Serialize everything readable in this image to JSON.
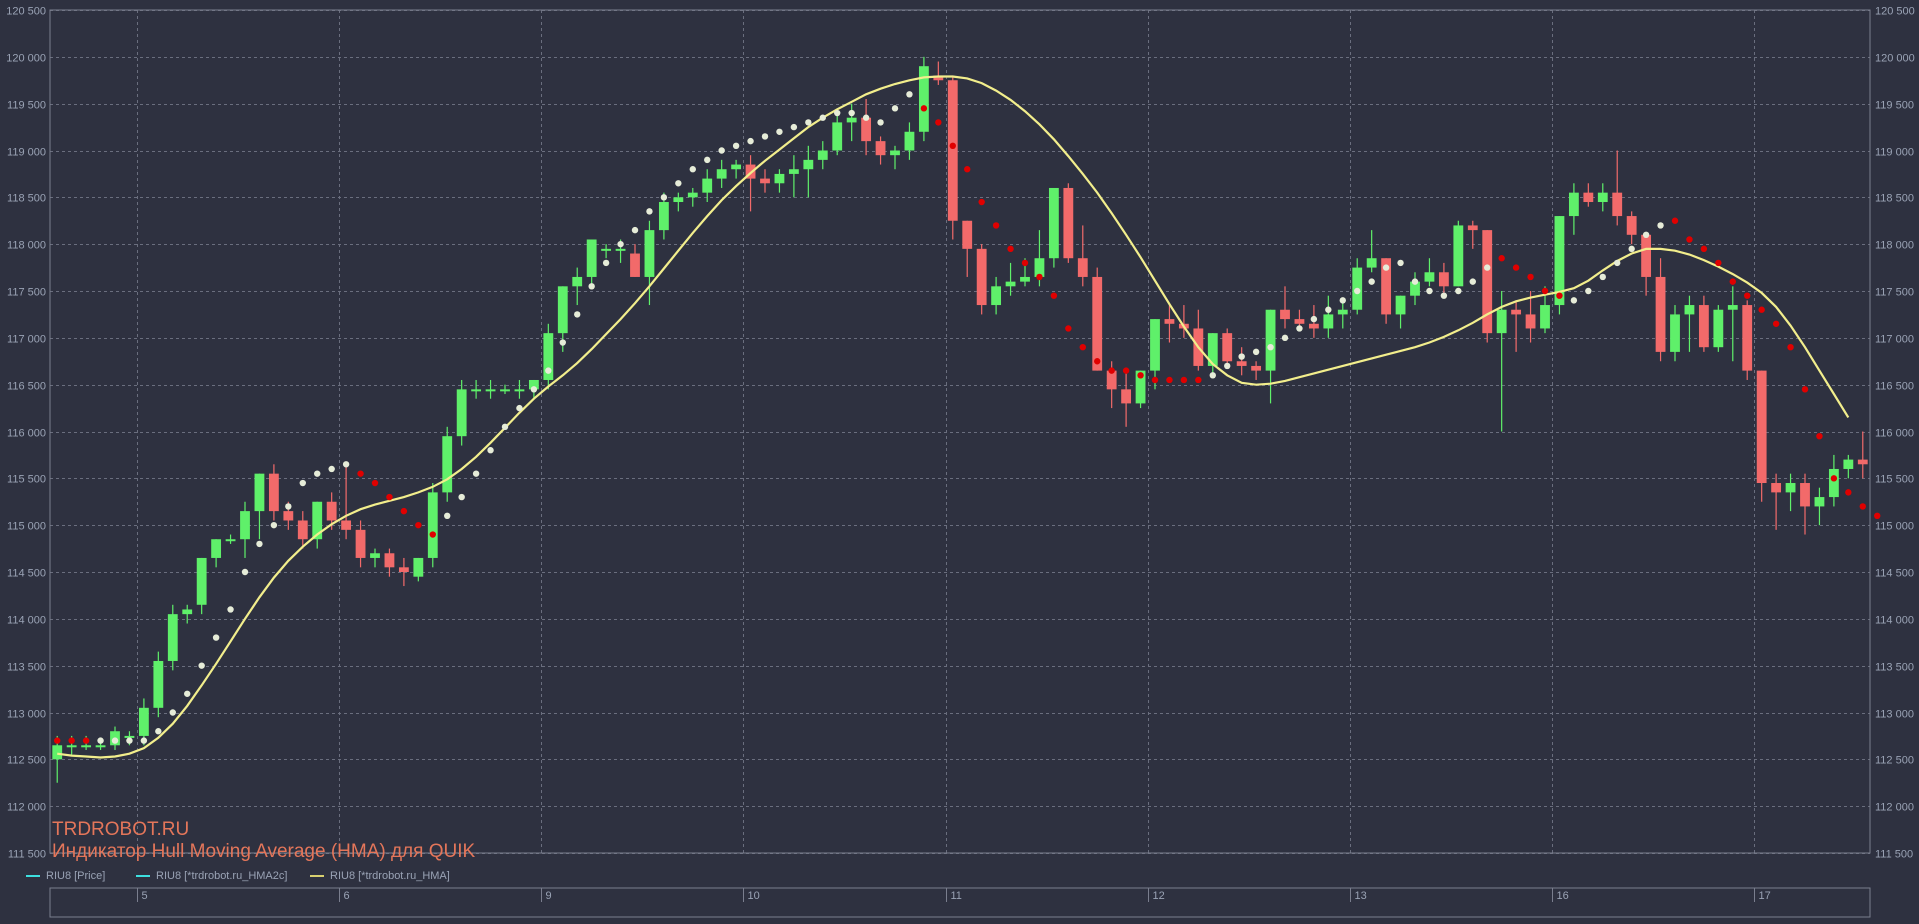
{
  "watermark": {
    "site": "TRDROBOT.RU",
    "title": "Индикатор Hull Moving Average (HMA) для QUIK"
  },
  "legend": [
    {
      "label": "RIU8 [Price]",
      "color": "#3de0e0"
    },
    {
      "label": "RIU8 [*trdrobot.ru_HMA2c]",
      "color": "#3de0e0"
    },
    {
      "label": "RIU8 [*trdrobot.ru_HMA]",
      "color": "#d8d070"
    }
  ],
  "colors": {
    "background": "#2e3140",
    "grid": "#6a6e7e",
    "bull": "#5ff06a",
    "bear": "#f26a6a",
    "hma_line": "#f2ee8c",
    "dot_up": "#e6ecd8",
    "dot_down": "#e00000",
    "axis_text": "#9aa3b5"
  },
  "chart_data": {
    "type": "candlestick",
    "y_range": [
      111500,
      120500
    ],
    "y_ticks": [
      111500,
      112000,
      112500,
      113000,
      113500,
      114000,
      114500,
      115000,
      115500,
      116000,
      116500,
      117000,
      117500,
      118000,
      118500,
      119000,
      119500,
      120000,
      120500
    ],
    "y_tick_labels": [
      "111 500",
      "112 000",
      "112 500",
      "113 000",
      "113 500",
      "114 000",
      "114 500",
      "115 000",
      "115 500",
      "116 000",
      "116 500",
      "117 000",
      "117 500",
      "118 000",
      "118 500",
      "119 000",
      "119 500",
      "120 000",
      "120 500"
    ],
    "x_day_labels": [
      {
        "label": "5",
        "bar": 6
      },
      {
        "label": "6",
        "bar": 20
      },
      {
        "label": "9",
        "bar": 34
      },
      {
        "label": "10",
        "bar": 48
      },
      {
        "label": "11",
        "bar": 62
      },
      {
        "label": "12",
        "bar": 76
      },
      {
        "label": "13",
        "bar": 90
      },
      {
        "label": "16",
        "bar": 104
      },
      {
        "label": "17",
        "bar": 118
      }
    ],
    "bars": [
      [
        112500,
        112750,
        112250,
        112650
      ],
      [
        112650,
        112750,
        112550,
        112650
      ],
      [
        112650,
        112750,
        112600,
        112650
      ],
      [
        112650,
        112700,
        112600,
        112650
      ],
      [
        112650,
        112850,
        112600,
        112800
      ],
      [
        112750,
        112800,
        112650,
        112750
      ],
      [
        112750,
        113150,
        112650,
        113050
      ],
      [
        113050,
        113650,
        112950,
        113550
      ],
      [
        113550,
        114150,
        113450,
        114050
      ],
      [
        114050,
        114150,
        113950,
        114100
      ],
      [
        114150,
        114650,
        114050,
        114650
      ],
      [
        114650,
        114850,
        114550,
        114850
      ],
      [
        114850,
        114900,
        114800,
        114850
      ],
      [
        114850,
        115250,
        114650,
        115150
      ],
      [
        115150,
        115550,
        114850,
        115550
      ],
      [
        115550,
        115650,
        115050,
        115150
      ],
      [
        115150,
        115250,
        114950,
        115050
      ],
      [
        115050,
        115150,
        114750,
        114850
      ],
      [
        114850,
        115250,
        114750,
        115250
      ],
      [
        115250,
        115350,
        114950,
        115050
      ],
      [
        115050,
        115650,
        114850,
        114950
      ],
      [
        114950,
        115050,
        114550,
        114650
      ],
      [
        114650,
        114750,
        114550,
        114700
      ],
      [
        114700,
        114750,
        114450,
        114550
      ],
      [
        114550,
        114650,
        114350,
        114500
      ],
      [
        114450,
        114650,
        114400,
        114650
      ],
      [
        114650,
        115450,
        114550,
        115350
      ],
      [
        115350,
        116050,
        115250,
        115950
      ],
      [
        115950,
        116550,
        115850,
        116450
      ],
      [
        116450,
        116550,
        116350,
        116450
      ],
      [
        116450,
        116550,
        116350,
        116450
      ],
      [
        116450,
        116500,
        116400,
        116450
      ],
      [
        116450,
        116550,
        116350,
        116450
      ],
      [
        116450,
        116550,
        116350,
        116550
      ],
      [
        116550,
        117150,
        116450,
        117050
      ],
      [
        117050,
        117550,
        116850,
        117550
      ],
      [
        117550,
        117750,
        117350,
        117650
      ],
      [
        117650,
        118050,
        117550,
        118050
      ],
      [
        117950,
        118000,
        117850,
        117950
      ],
      [
        117950,
        118050,
        117800,
        117950
      ],
      [
        117900,
        118000,
        117650,
        117650
      ],
      [
        117650,
        118250,
        117350,
        118150
      ],
      [
        118150,
        118550,
        118050,
        118450
      ],
      [
        118450,
        118550,
        118350,
        118500
      ],
      [
        118500,
        118600,
        118400,
        118550
      ],
      [
        118550,
        118800,
        118450,
        118700
      ],
      [
        118700,
        118900,
        118600,
        118800
      ],
      [
        118800,
        118900,
        118700,
        118850
      ],
      [
        118850,
        118950,
        118350,
        118700
      ],
      [
        118700,
        118800,
        118550,
        118650
      ],
      [
        118650,
        118800,
        118550,
        118750
      ],
      [
        118750,
        118950,
        118500,
        118800
      ],
      [
        118800,
        119050,
        118500,
        118900
      ],
      [
        118900,
        119100,
        118800,
        119000
      ],
      [
        119000,
        119400,
        118950,
        119300
      ],
      [
        119300,
        119500,
        119100,
        119350
      ],
      [
        119350,
        119550,
        118950,
        119100
      ],
      [
        119100,
        119150,
        118850,
        118950
      ],
      [
        118950,
        119050,
        118800,
        119000
      ],
      [
        119000,
        119300,
        118900,
        119200
      ],
      [
        119200,
        120000,
        119100,
        119900
      ],
      [
        119800,
        119950,
        119700,
        119750
      ],
      [
        119750,
        119800,
        118050,
        118250
      ],
      [
        118250,
        118250,
        117650,
        117950
      ],
      [
        117950,
        118000,
        117250,
        117350
      ],
      [
        117350,
        117650,
        117250,
        117550
      ],
      [
        117550,
        117800,
        117450,
        117600
      ],
      [
        117600,
        117850,
        117550,
        117650
      ],
      [
        117650,
        118150,
        117550,
        117850
      ],
      [
        117850,
        118550,
        117750,
        118600
      ],
      [
        118600,
        118650,
        117800,
        117850
      ],
      [
        117850,
        118200,
        117550,
        117650
      ],
      [
        117650,
        117750,
        116650,
        116650
      ],
      [
        116650,
        116750,
        116250,
        116450
      ],
      [
        116450,
        116650,
        116050,
        116300
      ],
      [
        116300,
        116650,
        116250,
        116650
      ],
      [
        116650,
        117200,
        116450,
        117200
      ],
      [
        117200,
        117350,
        116950,
        117150
      ],
      [
        117150,
        117350,
        117000,
        117100
      ],
      [
        117100,
        117300,
        116650,
        116700
      ],
      [
        116700,
        117050,
        116600,
        117050
      ],
      [
        117050,
        117100,
        116700,
        116750
      ],
      [
        116750,
        116900,
        116600,
        116700
      ],
      [
        116700,
        116750,
        116550,
        116650
      ],
      [
        116650,
        117300,
        116300,
        117300
      ],
      [
        117300,
        117550,
        117100,
        117200
      ],
      [
        117200,
        117300,
        117100,
        117150
      ],
      [
        117150,
        117350,
        117000,
        117100
      ],
      [
        117100,
        117450,
        117000,
        117250
      ],
      [
        117250,
        117400,
        117100,
        117300
      ],
      [
        117300,
        117850,
        117250,
        117750
      ],
      [
        117750,
        118150,
        117700,
        117850
      ],
      [
        117850,
        117850,
        117150,
        117250
      ],
      [
        117250,
        117450,
        117100,
        117450
      ],
      [
        117450,
        117700,
        117350,
        117600
      ],
      [
        117600,
        117850,
        117550,
        117700
      ],
      [
        117700,
        117800,
        117450,
        117550
      ],
      [
        117550,
        118250,
        117550,
        118200
      ],
      [
        118200,
        118250,
        117950,
        118150
      ],
      [
        118150,
        118150,
        116950,
        117050
      ],
      [
        117050,
        117500,
        116000,
        117300
      ],
      [
        117300,
        117400,
        116850,
        117250
      ],
      [
        117250,
        117500,
        116950,
        117100
      ],
      [
        117100,
        117550,
        117050,
        117350
      ],
      [
        117350,
        118300,
        117250,
        118300
      ],
      [
        118300,
        118650,
        118100,
        118550
      ],
      [
        118550,
        118650,
        118400,
        118450
      ],
      [
        118450,
        118650,
        118350,
        118550
      ],
      [
        118550,
        119000,
        118200,
        118300
      ],
      [
        118300,
        118350,
        118000,
        118100
      ],
      [
        118100,
        118050,
        117450,
        117650
      ],
      [
        117650,
        117850,
        116750,
        116850
      ],
      [
        116850,
        117350,
        116750,
        117250
      ],
      [
        117250,
        117450,
        116850,
        117350
      ],
      [
        117350,
        117450,
        116850,
        116900
      ],
      [
        116900,
        117350,
        116850,
        117300
      ],
      [
        117300,
        117550,
        116750,
        117350
      ],
      [
        117350,
        117400,
        116550,
        116650
      ],
      [
        116650,
        116650,
        115250,
        115450
      ],
      [
        115450,
        115550,
        114950,
        115350
      ],
      [
        115350,
        115550,
        115150,
        115450
      ],
      [
        115450,
        115550,
        114900,
        115200
      ],
      [
        115200,
        115400,
        115000,
        115300
      ],
      [
        115300,
        115750,
        115200,
        115600
      ],
      [
        115600,
        115750,
        115500,
        115700
      ],
      [
        115700,
        116000,
        115500,
        115650
      ]
    ],
    "hma": [
      112560,
      112540,
      112530,
      112520,
      112530,
      112560,
      112620,
      112730,
      112880,
      113070,
      113290,
      113520,
      113760,
      114000,
      114230,
      114440,
      114620,
      114770,
      114900,
      115010,
      115100,
      115170,
      115220,
      115260,
      115300,
      115350,
      115410,
      115490,
      115600,
      115730,
      115880,
      116040,
      116200,
      116350,
      116480,
      116600,
      116730,
      116880,
      117040,
      117200,
      117370,
      117550,
      117740,
      117930,
      118120,
      118300,
      118470,
      118620,
      118760,
      118890,
      119010,
      119130,
      119250,
      119350,
      119440,
      119520,
      119600,
      119660,
      119710,
      119750,
      119780,
      119790,
      119790,
      119770,
      119720,
      119640,
      119540,
      119420,
      119280,
      119120,
      118940,
      118750,
      118550,
      118330,
      118100,
      117860,
      117610,
      117360,
      117120,
      116900,
      116720,
      116600,
      116520,
      116500,
      116510,
      116540,
      116580,
      116620,
      116660,
      116700,
      116740,
      116780,
      116820,
      116860,
      116900,
      116950,
      117010,
      117080,
      117160,
      117250,
      117330,
      117390,
      117430,
      117460,
      117490,
      117530,
      117610,
      117720,
      117820,
      117900,
      117950,
      117950,
      117930,
      117890,
      117830,
      117760,
      117680,
      117590,
      117480,
      117330,
      117130,
      116900,
      116650,
      116400,
      116150
    ],
    "hma2c": [
      [
        112700,
        0
      ],
      [
        112700,
        0
      ],
      [
        112700,
        0
      ],
      [
        112700,
        1
      ],
      [
        112700,
        1
      ],
      [
        112700,
        1
      ],
      [
        112700,
        1
      ],
      [
        112800,
        1
      ],
      [
        113000,
        1
      ],
      [
        113200,
        1
      ],
      [
        113500,
        1
      ],
      [
        113800,
        1
      ],
      [
        114100,
        1
      ],
      [
        114500,
        1
      ],
      [
        114800,
        1
      ],
      [
        115000,
        1
      ],
      [
        115200,
        1
      ],
      [
        115450,
        1
      ],
      [
        115550,
        1
      ],
      [
        115600,
        1
      ],
      [
        115650,
        1
      ],
      [
        115550,
        0
      ],
      [
        115450,
        0
      ],
      [
        115300,
        0
      ],
      [
        115150,
        0
      ],
      [
        115000,
        0
      ],
      [
        114900,
        0
      ],
      [
        115100,
        1
      ],
      [
        115300,
        1
      ],
      [
        115550,
        1
      ],
      [
        115800,
        1
      ],
      [
        116050,
        1
      ],
      [
        116250,
        1
      ],
      [
        116450,
        1
      ],
      [
        116650,
        1
      ],
      [
        116950,
        1
      ],
      [
        117250,
        1
      ],
      [
        117550,
        1
      ],
      [
        117800,
        1
      ],
      [
        118000,
        1
      ],
      [
        118150,
        1
      ],
      [
        118350,
        1
      ],
      [
        118500,
        1
      ],
      [
        118650,
        1
      ],
      [
        118800,
        1
      ],
      [
        118900,
        1
      ],
      [
        119000,
        1
      ],
      [
        119050,
        1
      ],
      [
        119100,
        1
      ],
      [
        119150,
        1
      ],
      [
        119200,
        1
      ],
      [
        119250,
        1
      ],
      [
        119300,
        1
      ],
      [
        119350,
        1
      ],
      [
        119400,
        1
      ],
      [
        119400,
        1
      ],
      [
        119350,
        1
      ],
      [
        119300,
        1
      ],
      [
        119450,
        1
      ],
      [
        119600,
        1
      ],
      [
        119450,
        0
      ],
      [
        119300,
        0
      ],
      [
        119050,
        0
      ],
      [
        118800,
        0
      ],
      [
        118450,
        0
      ],
      [
        118200,
        0
      ],
      [
        117950,
        0
      ],
      [
        117800,
        0
      ],
      [
        117650,
        0
      ],
      [
        117450,
        0
      ],
      [
        117100,
        0
      ],
      [
        116900,
        0
      ],
      [
        116750,
        0
      ],
      [
        116650,
        0
      ],
      [
        116650,
        0
      ],
      [
        116600,
        0
      ],
      [
        116550,
        0
      ],
      [
        116550,
        0
      ],
      [
        116550,
        0
      ],
      [
        116550,
        0
      ],
      [
        116600,
        1
      ],
      [
        116700,
        1
      ],
      [
        116800,
        1
      ],
      [
        116850,
        1
      ],
      [
        116900,
        1
      ],
      [
        117000,
        1
      ],
      [
        117100,
        1
      ],
      [
        117200,
        1
      ],
      [
        117300,
        1
      ],
      [
        117400,
        1
      ],
      [
        117500,
        1
      ],
      [
        117600,
        1
      ],
      [
        117750,
        1
      ],
      [
        117800,
        1
      ],
      [
        117600,
        1
      ],
      [
        117500,
        1
      ],
      [
        117450,
        1
      ],
      [
        117500,
        1
      ],
      [
        117600,
        1
      ],
      [
        117750,
        1
      ],
      [
        117850,
        0
      ],
      [
        117750,
        0
      ],
      [
        117650,
        0
      ],
      [
        117500,
        0
      ],
      [
        117450,
        0
      ],
      [
        117400,
        1
      ],
      [
        117500,
        1
      ],
      [
        117650,
        1
      ],
      [
        117800,
        1
      ],
      [
        117950,
        1
      ],
      [
        118100,
        1
      ],
      [
        118200,
        1
      ],
      [
        118250,
        0
      ],
      [
        118050,
        0
      ],
      [
        117950,
        0
      ],
      [
        117800,
        0
      ],
      [
        117600,
        0
      ],
      [
        117450,
        0
      ],
      [
        117300,
        0
      ],
      [
        117150,
        0
      ],
      [
        116900,
        0
      ],
      [
        116450,
        0
      ],
      [
        115950,
        0
      ],
      [
        115500,
        0
      ],
      [
        115350,
        0
      ],
      [
        115200,
        0
      ],
      [
        115100,
        0
      ]
    ]
  }
}
